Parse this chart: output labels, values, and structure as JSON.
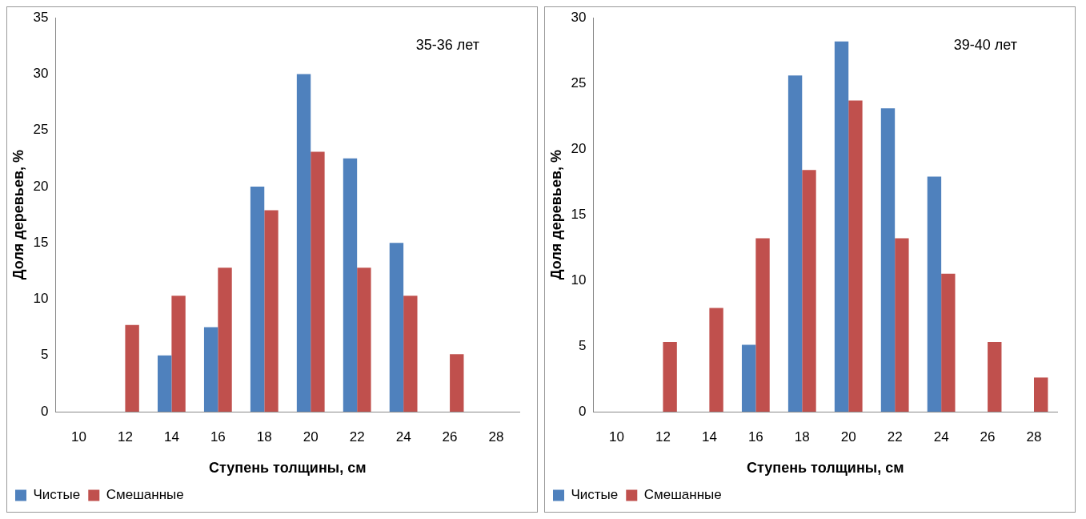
{
  "chart_data": [
    {
      "type": "bar",
      "categories": [
        "10",
        "12",
        "14",
        "16",
        "18",
        "20",
        "22",
        "24",
        "26",
        "28"
      ],
      "series": [
        {
          "name": "Чистые",
          "color": "#4f81bd",
          "values": [
            null,
            null,
            5,
            7.5,
            20,
            30,
            22.5,
            15,
            null,
            null
          ]
        },
        {
          "name": "Смешанные",
          "color": "#c0504d",
          "values": [
            null,
            7.7,
            10.3,
            12.8,
            17.9,
            23.1,
            12.8,
            10.3,
            5.1,
            null
          ]
        }
      ],
      "ylim": [
        0,
        35
      ],
      "yticks": [
        0,
        5,
        10,
        15,
        20,
        25,
        30,
        35
      ],
      "xlabel": "Ступень толщины, см",
      "ylabel": "Доля деревьев, %",
      "annotations": [
        "35-36 лет"
      ],
      "legend": "bottom left",
      "grid": false
    },
    {
      "type": "bar",
      "categories": [
        "10",
        "12",
        "14",
        "16",
        "18",
        "20",
        "22",
        "24",
        "26",
        "28"
      ],
      "series": [
        {
          "name": "Чистые",
          "color": "#4f81bd",
          "values": [
            null,
            null,
            null,
            5.1,
            25.6,
            28.2,
            23.1,
            17.9,
            null,
            null
          ]
        },
        {
          "name": "Смешанные",
          "color": "#c0504d",
          "values": [
            null,
            5.3,
            7.9,
            13.2,
            18.4,
            23.7,
            13.2,
            10.5,
            5.3,
            2.6
          ]
        }
      ],
      "ylim": [
        0,
        30
      ],
      "yticks": [
        0,
        5,
        10,
        15,
        20,
        25,
        30
      ],
      "xlabel": "Ступень толщины, см",
      "ylabel": "Доля деревьев, %",
      "annotations": [
        "39-40 лет"
      ],
      "legend": "bottom left",
      "grid": false
    }
  ]
}
